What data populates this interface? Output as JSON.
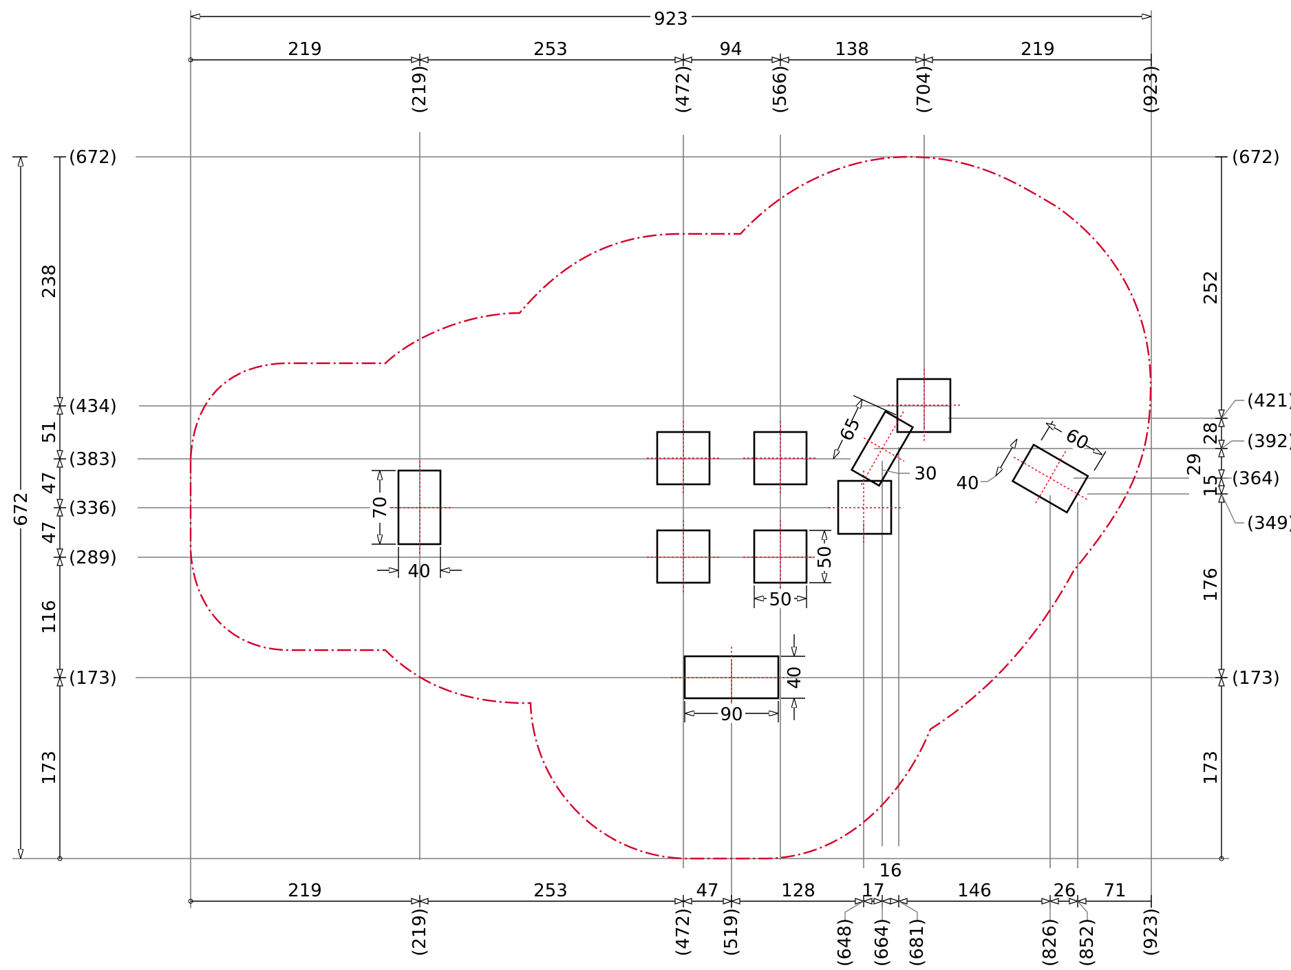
{
  "drawing": {
    "overall_width": "923",
    "overall_height": "672",
    "top_segments": [
      "219",
      "253",
      "94",
      "138",
      "219"
    ],
    "top_refs": [
      "(219)",
      "(472)",
      "(566)",
      "(704)",
      "(923)"
    ],
    "bottom_segments": [
      "219",
      "253",
      "47",
      "128",
      "17",
      "16",
      "146",
      "26",
      "71"
    ],
    "bottom_refs": [
      "(219)",
      "(472)",
      "(519)",
      "(648)",
      "(664)",
      "(681)",
      "(826)",
      "(852)",
      "(923)"
    ],
    "left_refs": [
      "(672)",
      "(434)",
      "(383)",
      "(336)",
      "(289)",
      "(173)"
    ],
    "left_segments": [
      "238",
      "51",
      "47",
      "47",
      "116",
      "173"
    ],
    "right_refs": [
      "(672)",
      "(421)",
      "(392)",
      "(364)",
      "(349)",
      "(173)"
    ],
    "right_segments": [
      "252",
      "28",
      "29",
      "15",
      "176",
      "173"
    ],
    "part_dims": {
      "tall_width": "40",
      "tall_height": "70",
      "square_width": "50",
      "square_height": "50",
      "wide_width": "90",
      "wide_height": "40",
      "rot1_length": "65",
      "rot1_width": "30",
      "rot2_length": "60",
      "rot2_width": "40"
    },
    "colors": {
      "boundary": "#d4002a",
      "centerline": "#e60012",
      "reference": "#7f7f7f",
      "outline": "#000000"
    }
  }
}
